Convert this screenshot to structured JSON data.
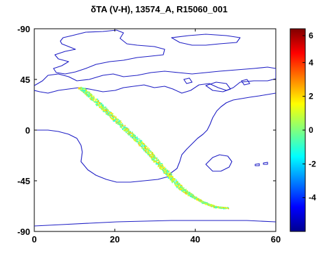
{
  "chart_data": {
    "type": "scatter",
    "title": "δTA (V-H),  13574_A,  R15060_001",
    "xlabel": "",
    "ylabel": "",
    "x_ticks": [
      "0",
      "20",
      "40",
      "60"
    ],
    "y_ticks": [
      "-90",
      "45",
      "0",
      "-45",
      "-90"
    ],
    "xlim": [
      0,
      60
    ],
    "ylim": [
      -90,
      90
    ],
    "y_axis_direction": "top value labeled -90, y decreases downward in data sense",
    "colorbar": {
      "colormap": "jet",
      "range": [
        -6,
        6
      ],
      "tick_labels": [
        "6",
        "4",
        "2",
        "0",
        "-2",
        "-4"
      ]
    },
    "swath_track": {
      "description_values": "satellite swath of delta TA values near zero",
      "center_line": [
        {
          "lon": 11.5,
          "lat": 38
        },
        {
          "lon": 14,
          "lat": 30
        },
        {
          "lon": 17,
          "lat": 20
        },
        {
          "lon": 20,
          "lat": 10
        },
        {
          "lon": 23,
          "lat": 0
        },
        {
          "lon": 26,
          "lat": -10
        },
        {
          "lon": 28.5,
          "lat": -20
        },
        {
          "lon": 31,
          "lat": -30
        },
        {
          "lon": 33.5,
          "lat": -40
        },
        {
          "lon": 36,
          "lat": -50
        },
        {
          "lon": 39,
          "lat": -58
        },
        {
          "lon": 42,
          "lat": -64
        },
        {
          "lon": 45,
          "lat": -68
        },
        {
          "lon": 48,
          "lat": -69
        }
      ],
      "value_range": [
        -1.5,
        2.5
      ]
    },
    "grid": false,
    "legend": "colorbar right"
  }
}
